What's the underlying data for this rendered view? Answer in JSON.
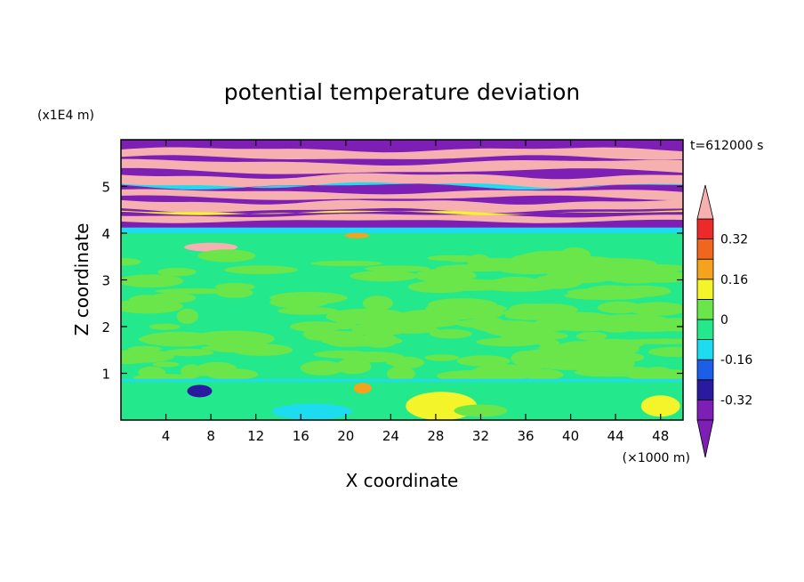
{
  "chart_data": {
    "type": "heatmap",
    "title": "potential temperature deviation",
    "time_label": "t=612000 s",
    "xlabel": "X coordinate",
    "ylabel": "Z coordinate",
    "x_unit": "(×1000 m)",
    "y_unit": "(x1E4 m)",
    "xlim": [
      0,
      50
    ],
    "ylim": [
      0,
      6
    ],
    "x_ticks": [
      "4",
      "8",
      "12",
      "16",
      "20",
      "24",
      "28",
      "32",
      "36",
      "40",
      "44",
      "48"
    ],
    "y_ticks": [
      "1",
      "2",
      "3",
      "4",
      "5"
    ],
    "colorbar": {
      "tick_labels": [
        "0.32",
        "0.16",
        "0",
        "-0.16",
        "-0.32"
      ],
      "levels": [
        -0.4,
        -0.32,
        -0.24,
        -0.16,
        -0.08,
        0,
        0.08,
        0.16,
        0.24,
        0.32,
        0.4
      ],
      "colors": [
        "#7d1fb5",
        "#2a1aa0",
        "#1c5ee6",
        "#1edcef",
        "#24e88c",
        "#6ae64a",
        "#f4f42a",
        "#f5a21e",
        "#f0661e",
        "#ec2a2a",
        "#f6b0b0"
      ],
      "extend": "both"
    },
    "palette": {
      "purple": "#7d1fb5",
      "pink": "#f6b0b0",
      "green_light": "#6ae64a",
      "green_mint": "#24e88c",
      "cyan": "#1edcef",
      "yellow": "#f4f42a",
      "navy": "#2a1aa0",
      "orange": "#f5a21e",
      "red": "#ec2a2a"
    }
  }
}
